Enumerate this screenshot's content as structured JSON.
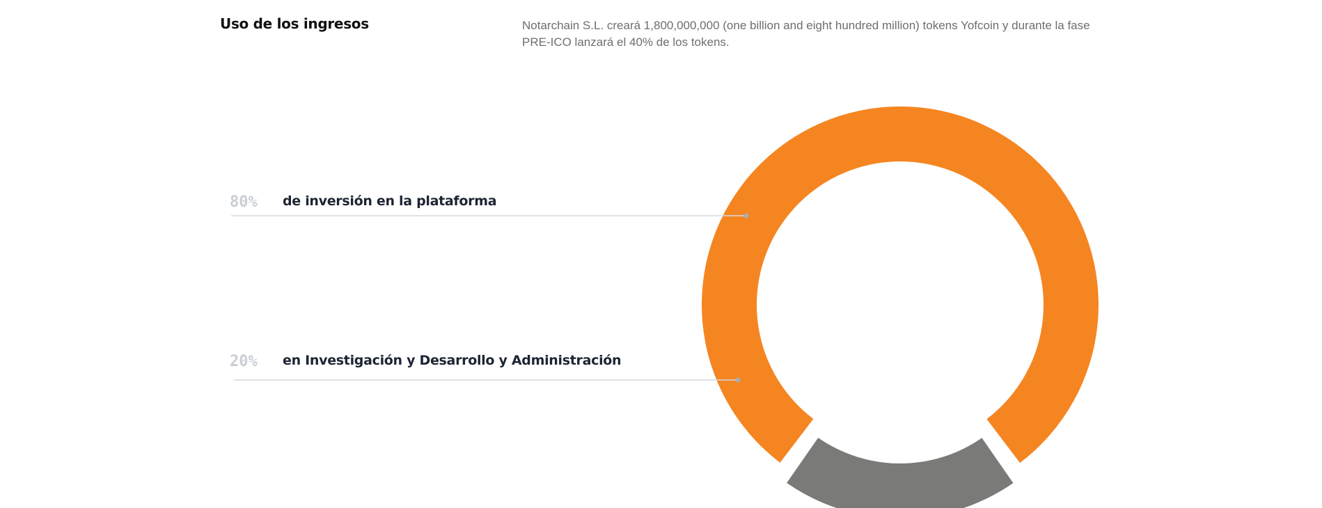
{
  "header": {
    "title": "Uso de los ingresos",
    "description": "Notarchain S.L. creará 1,800,000,000 (one billion and eight hundred million) tokens Yofcoin y durante la fase PRE-ICO lanzará el 40% de los tokens."
  },
  "chart_data": {
    "type": "pie",
    "title": "",
    "slices": [
      {
        "percent_label": "80%",
        "label": "de inversión en la plataforma",
        "value": 80,
        "color": "#f58521"
      },
      {
        "percent_label": "20%",
        "label": "en Investigación y Desarrollo y Administración",
        "value": 20,
        "color": "#7a7a78"
      }
    ]
  },
  "colors": {
    "leader_line": "#d5d8dd",
    "leader_dot": "#a9adb3"
  }
}
